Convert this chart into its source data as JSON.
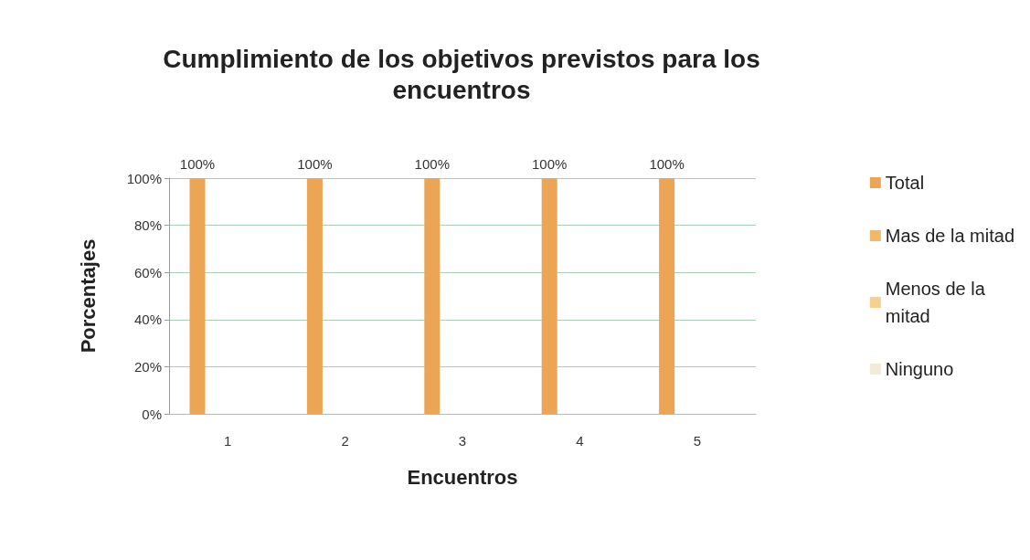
{
  "chart_data": {
    "type": "bar",
    "title": "Cumplimiento de los objetivos previstos para los\nencuentros",
    "xlabel": "Encuentros",
    "ylabel": "Porcentajes",
    "categories": [
      "1",
      "2",
      "3",
      "4",
      "5"
    ],
    "series": [
      {
        "name": "Total",
        "color": "#eba554",
        "values": [
          100,
          100,
          100,
          100,
          100
        ],
        "value_labels": [
          "100%",
          "100%",
          "100%",
          "100%",
          "100%"
        ]
      },
      {
        "name": "Mas de la mitad",
        "color": "#f0b86a",
        "values": [
          0,
          0,
          0,
          0,
          0
        ]
      },
      {
        "name": "Menos de la\nmitad",
        "color": "#f5d08e",
        "values": [
          0,
          0,
          0,
          0,
          0
        ]
      },
      {
        "name": "Ninguno",
        "color": "#f3ead8",
        "values": [
          0,
          0,
          0,
          0,
          0
        ]
      }
    ],
    "ylim": [
      0,
      100
    ],
    "yticks": [
      {
        "value": 0,
        "label": "0%"
      },
      {
        "value": 20,
        "label": "20%"
      },
      {
        "value": 40,
        "label": "40%"
      },
      {
        "value": 60,
        "label": "60%"
      },
      {
        "value": 80,
        "label": "80%"
      },
      {
        "value": 100,
        "label": "100%"
      }
    ],
    "grid": "y",
    "legend": "right"
  }
}
